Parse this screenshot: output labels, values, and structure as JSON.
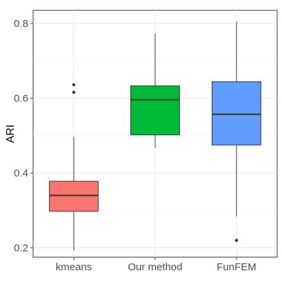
{
  "chart_data": {
    "type": "boxplot",
    "title": "",
    "xlabel": "",
    "ylabel": "ARI",
    "ylim": [
      0.175,
      0.835
    ],
    "yticks": [
      0.2,
      0.4,
      0.6,
      0.8
    ],
    "ytick_labels": [
      "0.2",
      "0.4",
      "0.6",
      "0.8"
    ],
    "grid": true,
    "legend": "none",
    "categories": [
      "kmeans",
      "Our method",
      "FunFEM"
    ],
    "boxes": [
      {
        "name": "kmeans",
        "color": "#F8766D",
        "whisker_low": 0.193,
        "q1": 0.298,
        "median": 0.34,
        "q3": 0.378,
        "whisker_high": 0.497,
        "outliers": [
          0.616,
          0.636
        ]
      },
      {
        "name": "Our method",
        "color": "#00BA38",
        "whisker_low": 0.468,
        "q1": 0.502,
        "median": 0.596,
        "q3": 0.633,
        "whisker_high": 0.773,
        "outliers": []
      },
      {
        "name": "FunFEM",
        "color": "#619CFF",
        "whisker_low": 0.284,
        "q1": 0.475,
        "median": 0.557,
        "q3": 0.644,
        "whisker_high": 0.805,
        "outliers": [
          0.22
        ]
      }
    ]
  }
}
